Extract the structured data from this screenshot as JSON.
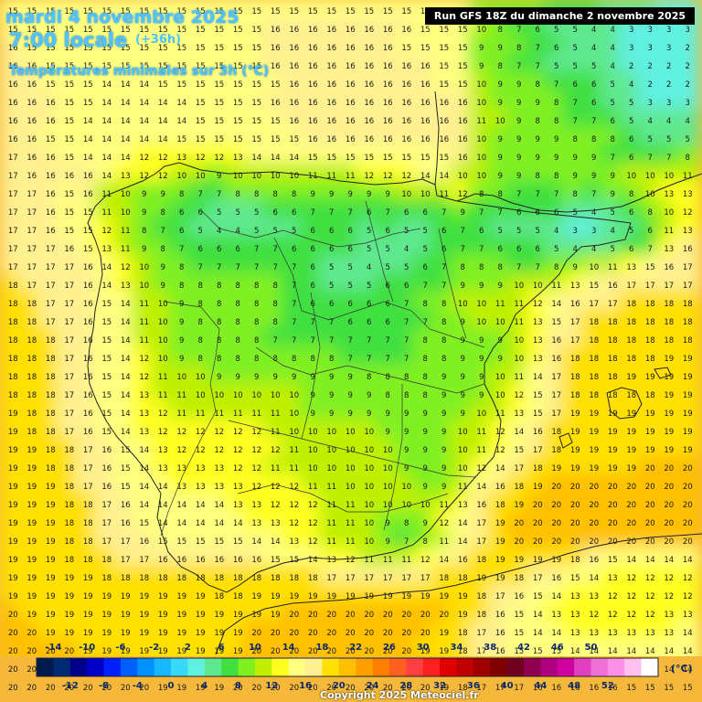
{
  "header": {
    "date": "mardi 4 novembre 2025",
    "time": "7:00 locale",
    "lead": "(+36h)",
    "parameter": "Températures minimales sur 3h (°C)"
  },
  "run_info": "Run GFS 18Z du dimanche 2 novembre 2025",
  "copyright": "Copyright 2025 Meteociel.fr",
  "legend": {
    "unit": "(°C)",
    "ticks_top": [
      "-14",
      "-10",
      "-6",
      "-2",
      "2",
      "6",
      "10",
      "14",
      "18",
      "22",
      "26",
      "30",
      "34",
      "38",
      "42",
      "46",
      "50"
    ],
    "ticks_bottom": [
      "-12",
      "-8",
      "-4",
      "0",
      "4",
      "8",
      "12",
      "16",
      "20",
      "24",
      "28",
      "32",
      "36",
      "40",
      "44",
      "48",
      "52"
    ],
    "colors": [
      "#001a4d",
      "#002b73",
      "#00008b",
      "#0000c8",
      "#0020ff",
      "#0060ff",
      "#0090ff",
      "#18b8ff",
      "#38d8f8",
      "#60f0e0",
      "#60e890",
      "#40e040",
      "#80f020",
      "#c0f000",
      "#ffff20",
      "#ffff80",
      "#fff090",
      "#ffe000",
      "#ffc000",
      "#ffa000",
      "#ff8000",
      "#ff6020",
      "#ff4040",
      "#ff2020",
      "#e00000",
      "#c00000",
      "#a00000",
      "#800000",
      "#700020",
      "#900050",
      "#b00080",
      "#d000a0",
      "#e040c0",
      "#f070d8",
      "#ff90e8",
      "#ffc0f0",
      "#ffffff"
    ]
  },
  "map": {
    "region": "Péninsule ibérique",
    "value_rows": [
      "15 15 15 15 15 15 15 15 15 15 15 15 15 15 15 15 15 15 15 15 15 15 15 15 15 9 9 9 8 7 7 6 5 4 4 3 3",
      "15 15 15 15 15 15 15 15 15 15 15 15 15 15 16 16 16 16 16 16 16 16 15 15 15 10 8 7 6 5 5 4 4 3 3 3 3",
      "16 15 15 15 15 15 15 15 15 15 15 15 15 15 16 16 16 16 16 16 16 15 15 15 15 9 9 8 7 6 5 4 4 3 3 3 2",
      "16 16 15 15 15 15 15 15 15 15 15 15 15 15 16 16 16 16 16 16 16 16 16 15 15 9 8 7 7 5 5 5 4 2 2 2 2",
      "16 16 15 15 15 14 14 14 15 15 15 15 15 15 15 16 16 16 16 16 16 16 16 15 15 10 9 9 8 7 6 6 5 4 2 2 2",
      "16 16 16 15 15 14 14 14 14 14 15 15 15 15 16 16 16 16 16 16 16 16 16 16 16 10 9 9 9 8 7 6 5 5 3 3 3",
      "16 16 16 15 14 14 14 14 14 14 15 15 15 15 15 16 16 16 16 16 16 16 16 16 16 11 10 9 8 8 7 7 6 5 4 4 4",
      "16 16 15 15 14 14 14 14 14 15 15 15 15 15 15 15 16 16 16 16 16 16 16 16 16 10 9 9 9 9 8 8 8 6 5 5 5",
      "17 16 16 15 14 14 14 12 12 13 12 12 13 14 14 14 15 15 15 15 15 15 15 15 16 10 9 9 9 9 9 9 7 6 7 7 8",
      "17 16 16 16 16 14 13 12 12 10 10 9 10 10 10 10 11 11 11 12 12 12 14 14 10 10 9 9 8 8 9 9 9 10 10 10 11",
      "17 17 16 15 16 11 10 9 9 8 7 7 8 8 8 8 9 9 9 9 9 10 10 11 12 8 8 7 7 7 8 7 9 8 10 13 13",
      "17 17 16 15 15 11 10 9 8 6 6 5 5 5 6 6 7 7 7 6 7 6 6 7 9 7 7 6 6 6 5 4 5 6 8 10 12",
      "17 17 16 15 15 12 11 8 7 6 5 4 4 5 5 5 6 6 6 5 6 5 5 6 7 6 5 5 5 4 3 3 4 5 6 11 13",
      "17 17 17 16 15 13 11 9 8 7 6 6 6 7 7 6 6 6 6 5 5 4 5 6 7 7 6 6 6 5 4 4 5 6 7 13 16",
      "17 17 17 17 16 14 12 10 9 8 7 7 7 7 7 7 6 5 5 4 5 5 6 7 8 8 8 7 7 8 9 10 11 13 15 16 17",
      "18 17 17 17 16 14 13 10 9 8 8 8 8 8 8 7 6 5 5 5 6 6 7 7 9 9 9 10 10 11 13 15 16 17 17 17 17",
      "18 18 17 17 16 15 14 11 10 9 8 8 8 8 8 7 6 6 6 6 6 7 8 8 10 10 11 11 12 14 16 17 17 18 18 18 18",
      "18 18 17 17 16 15 14 11 10 9 8 8 8 8 8 7 7 7 6 6 6 7 7 8 9 10 10 11 13 15 17 18 18 18 18 18 18",
      "18 18 18 17 16 15 14 11 10 9 8 8 8 8 7 7 7 7 7 7 7 7 8 8 9 9 9 10 13 16 17 18 18 18 18 18 18",
      "18 18 18 17 16 15 14 12 10 9 8 8 8 8 8 8 8 8 7 7 7 7 8 8 9 9 9 10 13 16 18 18 18 18 18 19 19",
      "18 18 18 17 16 15 14 12 11 10 10 9 9 9 9 9 9 9 9 8 8 8 8 9 9 9 10 11 14 17 18 18 18 19 19 19 19",
      "18 18 18 17 16 15 14 13 11 11 10 10 10 10 10 10 9 9 9 9 8 8 8 9 9 9 10 12 15 17 18 18 18 18 18 19 19",
      "19 18 18 17 16 15 14 13 12 11 11 11 11 11 11 10 9 9 9 9 9 9 9 9 9 10 11 13 15 17 19 19 19 19 19 19 19",
      "19 18 18 17 16 15 14 13 12 12 12 12 12 12 11 10 10 10 10 10 9 9 9 9 10 11 12 14 16 18 19 19 19 19 19 19 19",
      "19 19 18 18 17 16 15 14 13 12 12 12 12 12 12 11 10 10 10 10 10 9 9 9 10 11 12 15 17 18 19 19 19 19 19 19 19",
      "19 19 18 18 17 16 15 14 13 13 13 13 12 12 11 11 10 10 10 10 10 9 9 9 10 12 14 17 18 19 19 19 19 19 20 20 20",
      "19 19 19 18 17 16 15 14 14 13 13 13 13 12 12 12 11 11 10 10 10 10 9 9 11 14 16 18 19 20 20 20 20 20 20 20 20",
      "19 19 19 18 18 17 16 14 14 14 14 14 13 13 12 12 12 11 11 10 10 10 10 11 13 16 18 19 20 20 20 20 20 20 20 20 20",
      "19 19 19 18 18 17 16 15 14 14 14 14 14 13 13 12 12 11 11 10 9 8 9 12 14 17 19 20 20 20 20 20 20 20 20 20 20",
      "19 19 19 18 18 17 17 16 15 15 15 15 15 14 14 13 12 11 11 10 9 7 8 11 14 17 19 20 20 20 20 20 20 20 20 20 20",
      "19 19 19 18 18 18 17 17 16 16 16 16 16 16 15 15 14 13 12 11 11 11 12 14 16 18 19 19 19 19 18 16 15 14 14 14 14",
      "19 19 19 19 19 18 18 18 18 18 18 18 18 18 18 18 18 17 17 17 17 17 17 18 18 19 19 18 17 16 15 14 13 12 12 12 12",
      "19 19 19 19 19 19 19 19 19 19 19 18 18 19 19 19 19 19 19 19 19 19 19 19 19 18 17 16 15 14 13 13 12 12 12 12 12",
      "20 19 19 19 19 19 19 19 19 19 19 19 19 19 19 20 20 20 20 20 20 20 20 20 19 18 16 15 14 13 13 12 12 12 12 13 13",
      "20 20 19 19 19 19 19 19 19 19 19 19 19 20 20 20 20 20 20 20 20 20 20 19 18 17 16 15 14 14 13 13 13 13 13 13 14",
      "20 20 20 20 19 19 19 19 19 19 19 19 19 20 20 20 20 20 20 20 20 20 19 19 18 17 16 15 15 15 14 14 14 14 14 14 14",
      "20 20 20 20 20 20 20 19 19 19 19 19 20 20 20 20 20 20 20 20 20 20 20 19 18 17 16 16 16 15 15 15 15 15 15 14 14",
      "20 20 20 20 20 20 20 20 19 19 19 19 20 20 20 20 20 20 20 20 20 20 20 19 18 17 17 17 16 16 16 16 16 15 15 15 15"
    ]
  }
}
